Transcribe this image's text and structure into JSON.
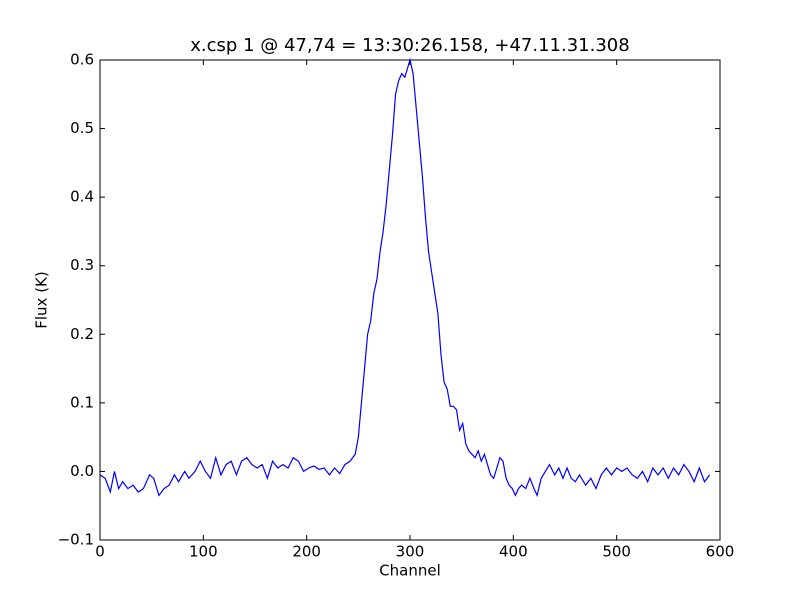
{
  "chart_data": {
    "type": "line",
    "title": "x.csp 1 @ 47,74 = 13:30:26.158, +47.11.31.308",
    "xlabel": "Channel",
    "ylabel": "Flux (K)",
    "x": [
      0,
      5,
      10,
      14,
      18,
      22,
      27,
      32,
      37,
      42,
      48,
      52,
      57,
      62,
      67,
      72,
      76,
      82,
      86,
      92,
      97,
      102,
      107,
      112,
      117,
      122,
      127,
      132,
      137,
      142,
      147,
      152,
      157,
      162,
      167,
      172,
      177,
      182,
      187,
      192,
      197,
      202,
      207,
      212,
      217,
      222,
      227,
      232,
      237,
      242,
      247,
      250,
      253,
      256,
      259,
      262,
      265,
      268,
      271,
      274,
      277,
      280,
      283,
      286,
      289,
      292,
      295,
      298,
      300,
      303,
      306,
      309,
      312,
      315,
      318,
      321,
      324,
      327,
      330,
      333,
      336,
      339,
      342,
      345,
      348,
      351,
      354,
      357,
      360,
      363,
      366,
      369,
      372,
      375,
      378,
      381,
      384,
      387,
      390,
      393,
      396,
      399,
      402,
      405,
      408,
      412,
      416,
      420,
      423,
      427,
      431,
      435,
      440,
      444,
      448,
      452,
      456,
      460,
      464,
      470,
      475,
      480,
      485,
      490,
      495,
      500,
      505,
      510,
      515,
      520,
      525,
      530,
      535,
      540,
      545,
      550,
      555,
      560,
      565,
      570,
      575,
      580,
      585,
      590
    ],
    "series": [
      {
        "name": "x.csp 1",
        "color": "#0000ff",
        "values": [
          -0.005,
          -0.01,
          -0.03,
          0.0,
          -0.025,
          -0.015,
          -0.025,
          -0.02,
          -0.03,
          -0.025,
          -0.005,
          -0.01,
          -0.035,
          -0.025,
          -0.02,
          -0.005,
          -0.015,
          0.0,
          -0.01,
          0.0,
          0.015,
          0.0,
          -0.01,
          0.02,
          -0.005,
          0.01,
          0.015,
          -0.005,
          0.015,
          0.02,
          0.01,
          0.005,
          0.01,
          -0.01,
          0.015,
          0.005,
          0.01,
          0.005,
          0.02,
          0.015,
          0.0,
          0.005,
          0.008,
          0.003,
          0.005,
          -0.005,
          0.005,
          -0.003,
          0.01,
          0.015,
          0.025,
          0.05,
          0.1,
          0.15,
          0.2,
          0.22,
          0.26,
          0.28,
          0.32,
          0.35,
          0.39,
          0.44,
          0.49,
          0.55,
          0.57,
          0.58,
          0.575,
          0.59,
          0.6,
          0.58,
          0.53,
          0.48,
          0.43,
          0.37,
          0.32,
          0.29,
          0.26,
          0.23,
          0.17,
          0.13,
          0.12,
          0.095,
          0.095,
          0.09,
          0.06,
          0.07,
          0.04,
          0.03,
          0.025,
          0.02,
          0.03,
          0.015,
          0.025,
          0.01,
          -0.005,
          -0.01,
          0.005,
          0.02,
          0.015,
          -0.01,
          -0.02,
          -0.025,
          -0.035,
          -0.025,
          -0.02,
          -0.025,
          -0.01,
          -0.025,
          -0.035,
          -0.01,
          0.0,
          0.01,
          -0.005,
          0.005,
          -0.01,
          0.005,
          -0.01,
          -0.015,
          -0.005,
          -0.02,
          -0.01,
          -0.025,
          -0.005,
          0.005,
          -0.005,
          0.005,
          0.0,
          0.005,
          -0.005,
          -0.01,
          0.0,
          -0.015,
          0.005,
          -0.005,
          0.005,
          -0.01,
          0.005,
          -0.005,
          0.01,
          0.0,
          -0.015,
          0.005,
          -0.015,
          -0.005
        ]
      }
    ],
    "xlim": [
      0,
      600
    ],
    "xticks": [
      0,
      100,
      200,
      300,
      400,
      500,
      600
    ],
    "ylim": [
      -0.1,
      0.6
    ],
    "yticks": [
      {
        "value": -0.1,
        "label": "−0.1"
      },
      {
        "value": 0,
        "label": "0.0"
      },
      0.1,
      0.2,
      0.3,
      0.4,
      0.5,
      0.6
    ],
    "grid": false
  }
}
